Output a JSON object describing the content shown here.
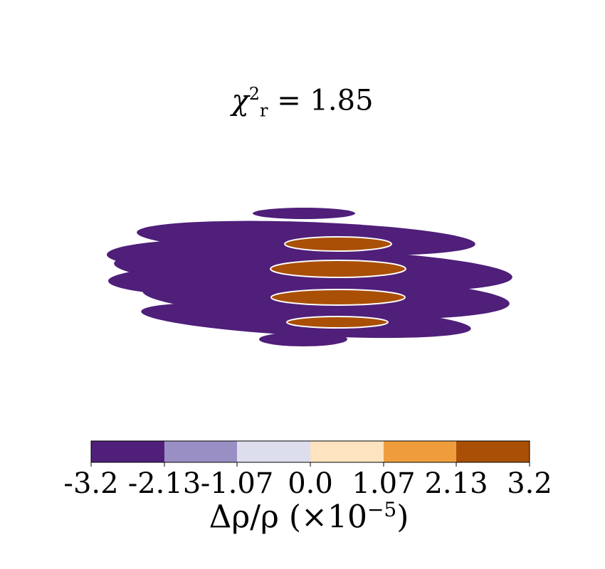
{
  "title": {
    "symbol": "χ",
    "superscript": "2",
    "subscript": "r",
    "equals": " = ",
    "value": "1.85"
  },
  "colors": {
    "background": "#ffffff",
    "negative": "#4f1f7a",
    "positive": "#a94f06",
    "gap": "#fdfdfd"
  },
  "chart_data": {
    "type": "heatmap",
    "description_of_field": "filled contour map of relative density perturbation",
    "levels": [
      -3.2,
      -2.13,
      -1.07,
      0.0,
      1.07,
      2.13,
      3.2
    ],
    "level_labels": [
      "-3.2",
      "-2.13",
      "-1.07",
      "0.0",
      "1.07",
      "2.13",
      "3.2"
    ],
    "level_colors": [
      "#4f1f7a",
      "#9a8fc4",
      "#dcdeee",
      "#fde3bf",
      "#ef9d3c",
      "#a94f06"
    ],
    "colorbar_label": "Δρ/ρ (×10",
    "colorbar_exponent": "−5",
    "colorbar_label_close": ")"
  }
}
